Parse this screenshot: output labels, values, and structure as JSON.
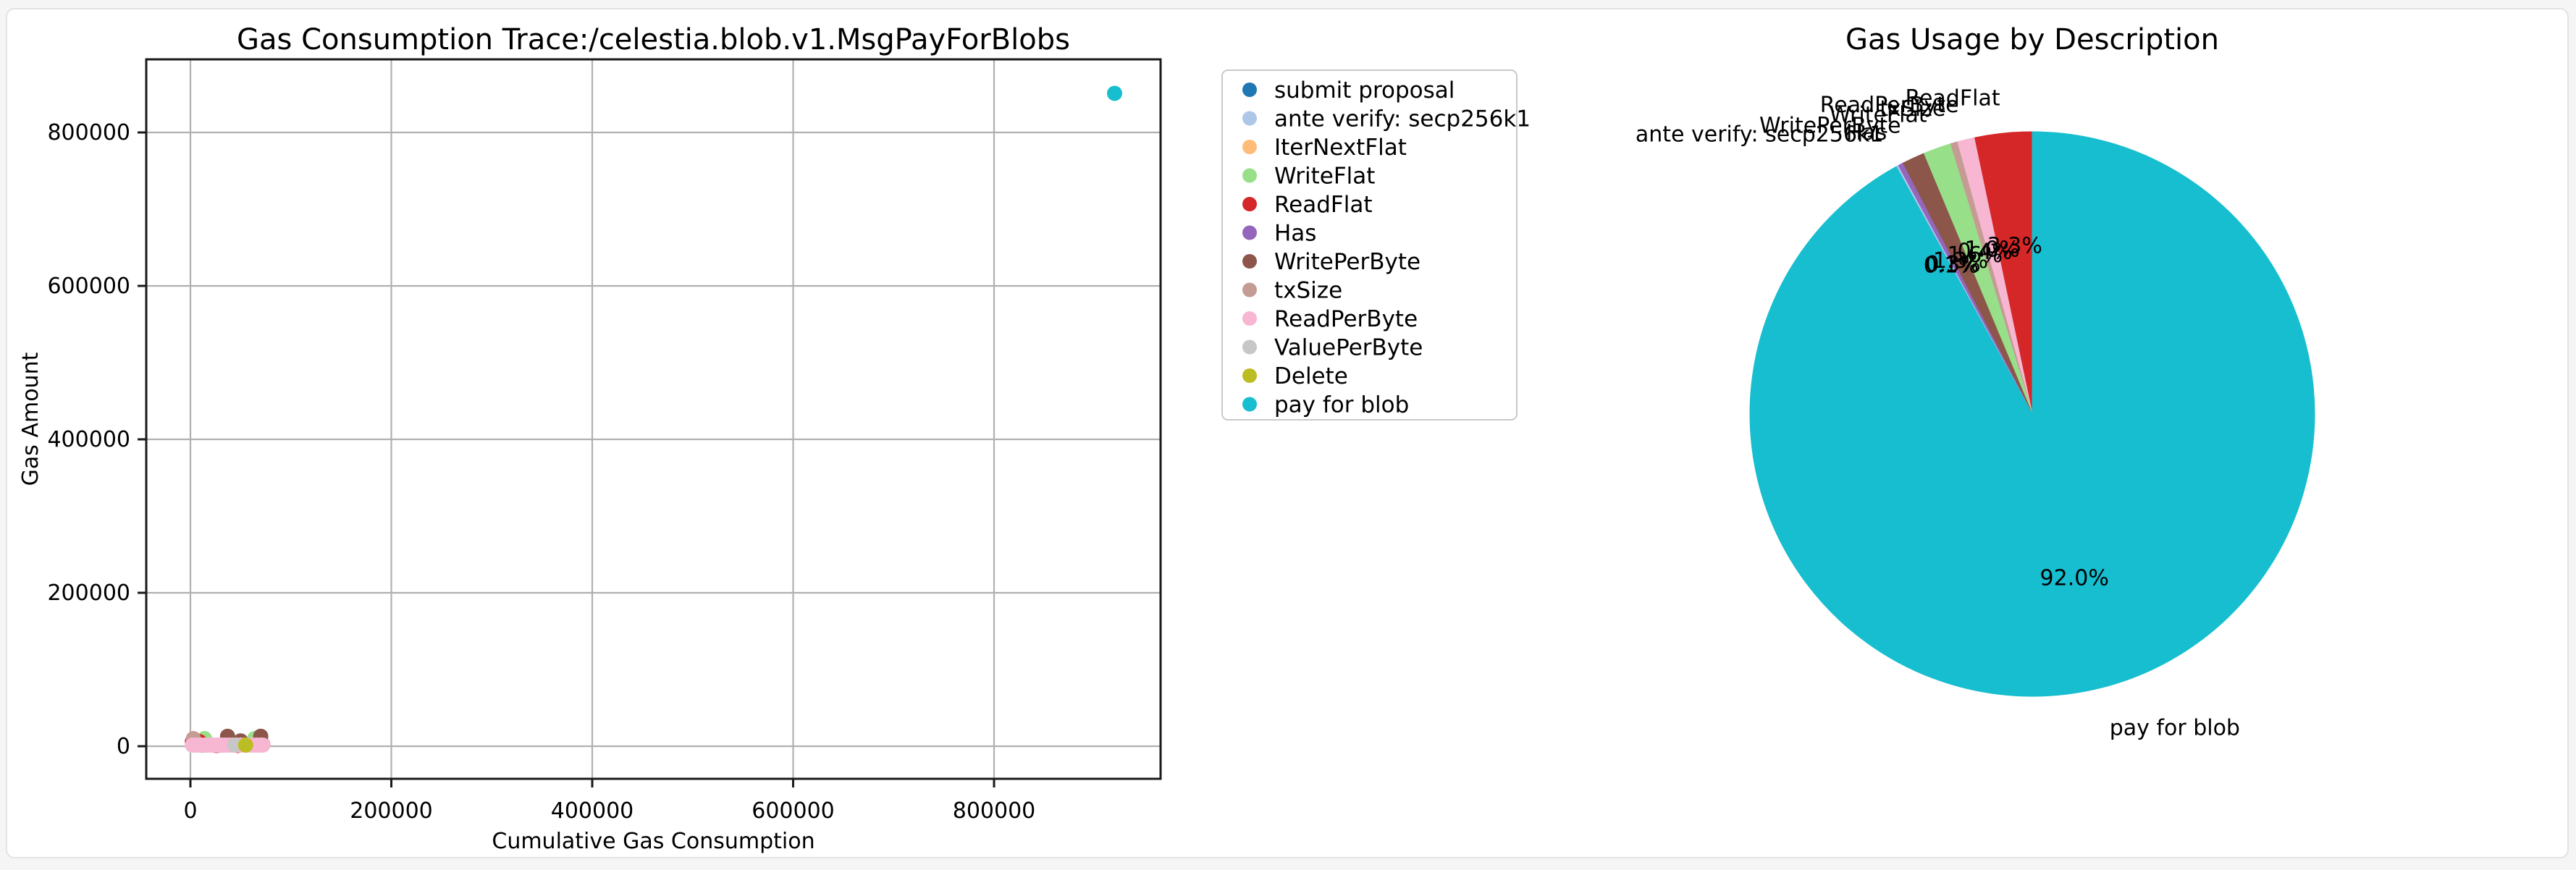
{
  "figure": {
    "page_background": "#f5f5f6",
    "card_background": "#ffffff",
    "card_border": "#e3e3e6",
    "grid_color": "#b0b0b0",
    "spine_color": "#1a1a1a",
    "legend_border": "#c9c9c9"
  },
  "chart_data": [
    {
      "type": "scatter",
      "title": "Gas Consumption Trace:/celestia.blob.v1.MsgPayForBlobs",
      "xlabel": "Cumulative Gas Consumption",
      "ylabel": "Gas Amount",
      "xlim": [
        -46000,
        966000
      ],
      "ylim": [
        -42500,
        893500
      ],
      "xticks": [
        0,
        200000,
        400000,
        600000,
        800000
      ],
      "xtick_labels": [
        "0",
        "200000",
        "400000",
        "600000",
        "800000"
      ],
      "yticks": [
        0,
        200000,
        400000,
        600000,
        800000
      ],
      "ytick_labels": [
        "0",
        "200000",
        "400000",
        "600000",
        "800000"
      ],
      "grid": true,
      "legend_position": "outside-right",
      "series": [
        {
          "name": "submit proposal",
          "color": "#1f77b4",
          "points": [
            [
              12000,
              1500
            ]
          ]
        },
        {
          "name": "ante verify: secp256k1",
          "color": "#aec7e8",
          "points": [
            [
              16000,
              1500
            ]
          ]
        },
        {
          "name": "IterNextFlat",
          "color": "#ffbb78",
          "points": [
            [
              22000,
              1500
            ]
          ]
        },
        {
          "name": "WriteFlat",
          "color": "#98df8a",
          "points": [
            [
              14000,
              10000
            ],
            [
              64000,
              10000
            ]
          ]
        },
        {
          "name": "ReadFlat",
          "color": "#d62728",
          "points": [
            [
              2000,
              6000
            ],
            [
              9000,
              6000
            ],
            [
              26000,
              1000
            ],
            [
              47000,
              1000
            ],
            [
              72000,
              2000
            ]
          ]
        },
        {
          "name": "Has",
          "color": "#9467bd",
          "points": [
            [
              30000,
              1500
            ]
          ]
        },
        {
          "name": "WritePerByte",
          "color": "#8c564b",
          "points": [
            [
              37000,
              13000
            ],
            [
              50000,
              7000
            ],
            [
              70000,
              13000
            ]
          ]
        },
        {
          "name": "txSize",
          "color": "#c49c94",
          "points": [
            [
              3000,
              10000
            ]
          ]
        },
        {
          "name": "ReadPerByte",
          "color": "#f7b6d2",
          "points": [
            [
              2000,
              1500
            ],
            [
              6000,
              1500
            ],
            [
              10000,
              1500
            ],
            [
              14000,
              1500
            ],
            [
              18000,
              1500
            ],
            [
              22000,
              1500
            ],
            [
              26000,
              1500
            ],
            [
              30000,
              1500
            ],
            [
              34000,
              1500
            ],
            [
              38000,
              1500
            ],
            [
              42000,
              1500
            ],
            [
              46000,
              1500
            ],
            [
              50000,
              1500
            ],
            [
              54000,
              1500
            ],
            [
              58000,
              1500
            ],
            [
              62000,
              1500
            ],
            [
              66000,
              1500
            ],
            [
              70000,
              1500
            ],
            [
              72000,
              1500
            ]
          ]
        },
        {
          "name": "ValuePerByte",
          "color": "#c7c7c7",
          "points": [
            [
              44000,
              1500
            ]
          ]
        },
        {
          "name": "Delete",
          "color": "#bcbd22",
          "points": [
            [
              55000,
              1500
            ]
          ]
        },
        {
          "name": "pay for blob",
          "color": "#17becf",
          "points": [
            [
              920000,
              851000
            ]
          ]
        }
      ]
    },
    {
      "type": "pie",
      "title": "Gas Usage by Description",
      "start_angle": 90,
      "direction": "counterclockwise",
      "slices": [
        {
          "label": "ReadFlat",
          "pct": 3.3,
          "pct_label": "3.3%",
          "color": "#d62728"
        },
        {
          "label": "ReadPerByte",
          "pct": 1.0,
          "pct_label": "1.0%",
          "color": "#f7b6d2"
        },
        {
          "label": "txSize",
          "pct": 0.4,
          "pct_label": "0.4%",
          "color": "#c49c94"
        },
        {
          "label": "WriteFlat",
          "pct": 1.6,
          "pct_label": "1.6%",
          "color": "#98df8a"
        },
        {
          "label": "WritePerByte",
          "pct": 1.3,
          "pct_label": "1.3%",
          "color": "#8c564b"
        },
        {
          "label": "Has",
          "pct": 0.3,
          "pct_label": "0.3%",
          "color": "#9467bd"
        },
        {
          "label": "ante verify: secp256k1",
          "pct": 0.1,
          "pct_label": "0.1%",
          "color": "#aec7e8"
        },
        {
          "label": "pay for blob",
          "pct": 92.0,
          "pct_label": "92.0%",
          "color": "#17becf"
        }
      ]
    }
  ]
}
